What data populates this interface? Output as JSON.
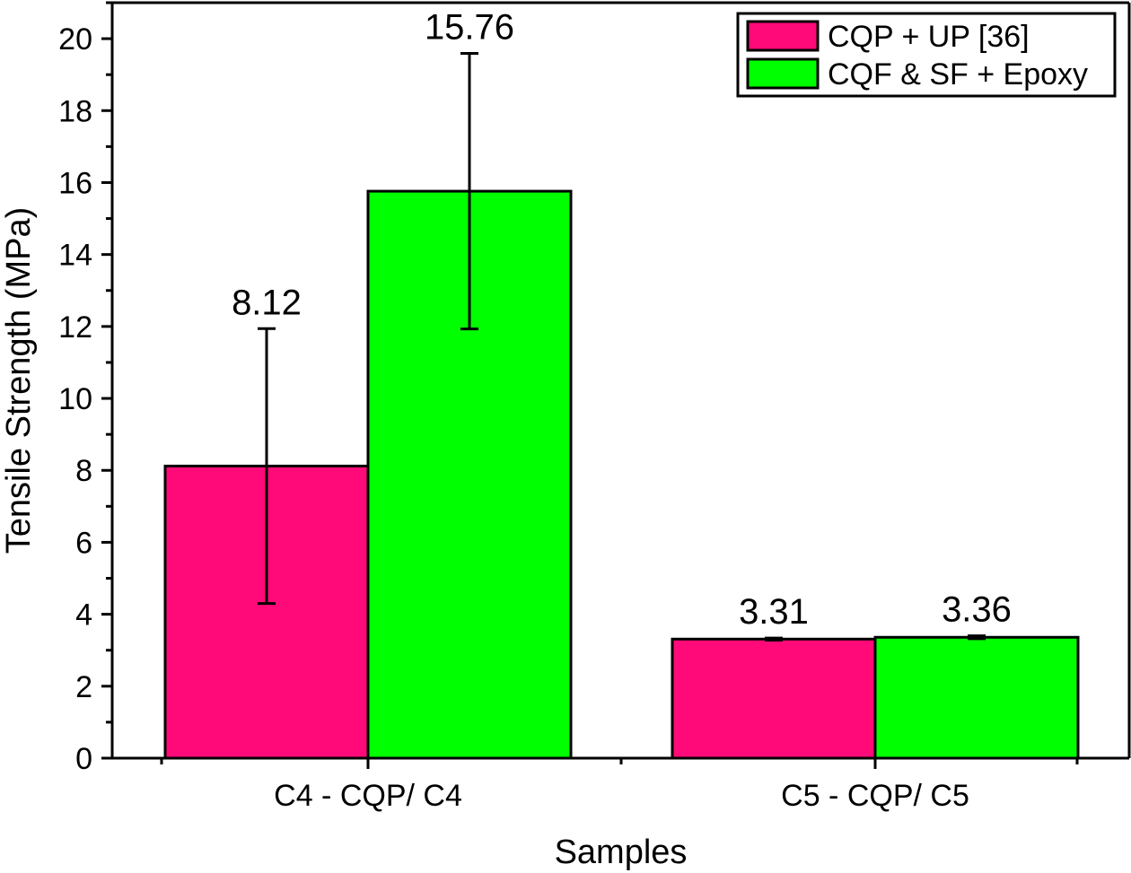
{
  "chart_data": {
    "type": "bar",
    "categories": [
      "C4 - CQP/ C4",
      "C5 - CQP/ C5"
    ],
    "series": [
      {
        "name": "CQP + UP [36]",
        "color": "#ff0a78",
        "values": [
          8.12,
          3.31
        ],
        "errors": [
          3.82,
          0.03
        ],
        "labels": [
          "8.12",
          "3.31"
        ]
      },
      {
        "name": "CQF & SF + Epoxy",
        "color": "#00ff00",
        "values": [
          15.76,
          3.36
        ],
        "errors": [
          3.83,
          0.04
        ],
        "labels": [
          "15.76",
          "3.36"
        ]
      }
    ],
    "xlabel": "Samples",
    "ylabel": "Tensile Strength (MPa)",
    "ylim": [
      0,
      21
    ],
    "yticks": [
      0,
      2,
      4,
      6,
      8,
      10,
      12,
      14,
      16,
      18,
      20
    ],
    "minor_ticks": true,
    "grid": false,
    "legend_position": "top-right"
  }
}
